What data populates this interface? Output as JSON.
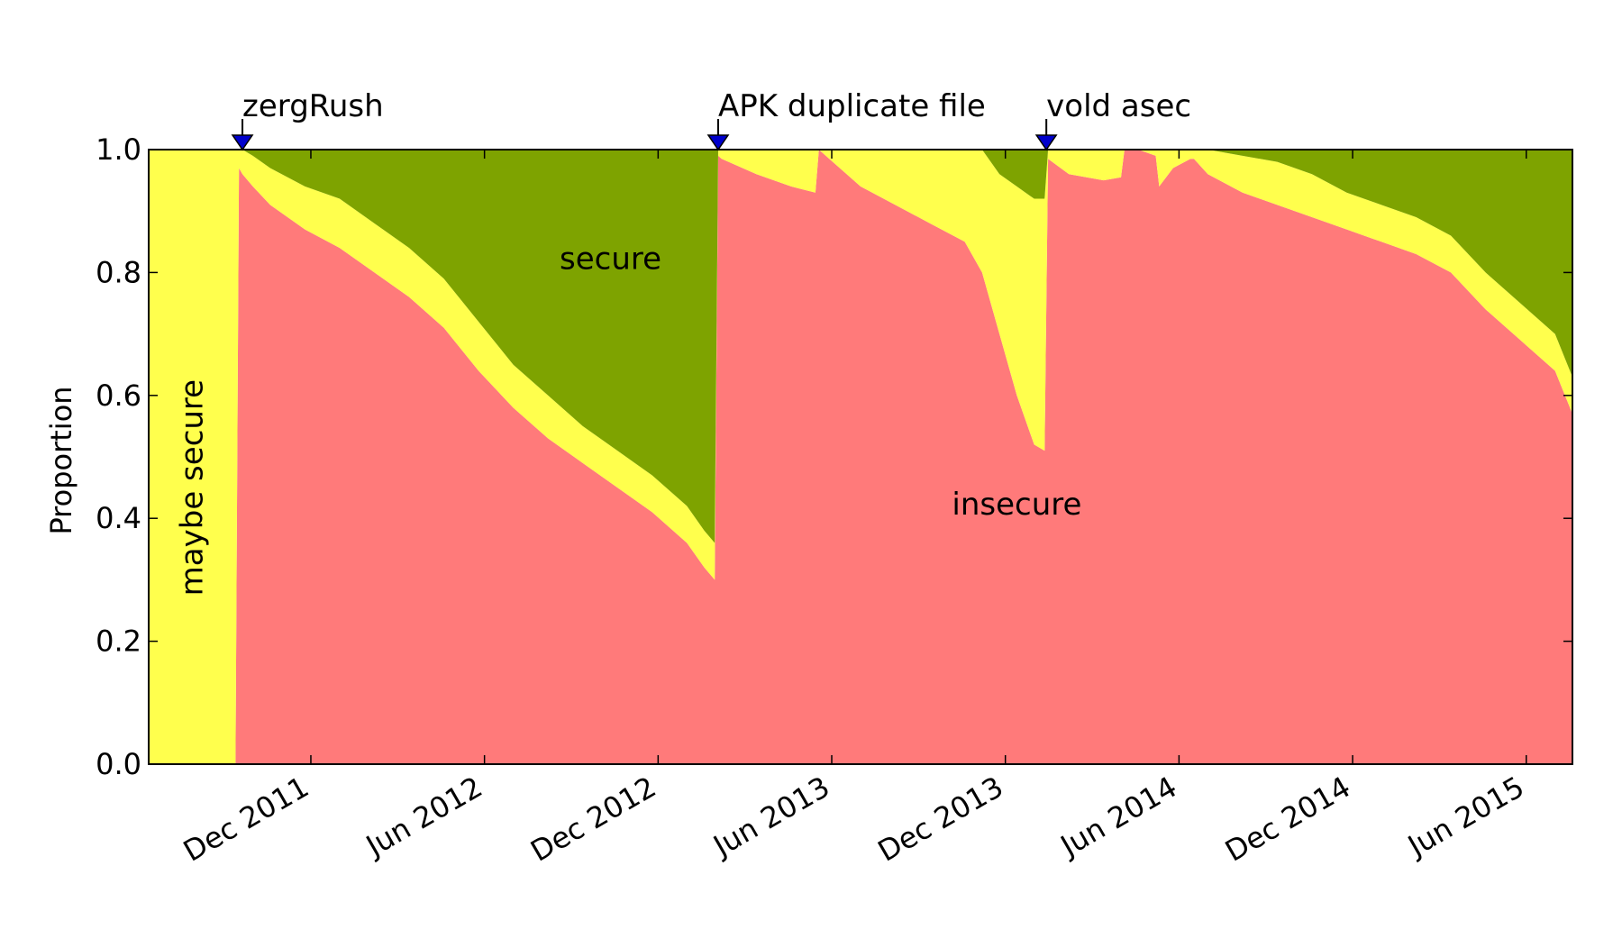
{
  "chart_data": {
    "type": "area",
    "stacking": "stacked-to-one",
    "title": "",
    "xlabel": "",
    "ylabel": "Proportion",
    "xlim": [
      2011.45,
      2015.55
    ],
    "ylim": [
      0.0,
      1.0
    ],
    "grid": false,
    "legend": "none (inline region labels)",
    "y_ticks": [
      {
        "value": 0.0,
        "label": "0.0"
      },
      {
        "value": 0.2,
        "label": "0.2"
      },
      {
        "value": 0.4,
        "label": "0.4"
      },
      {
        "value": 0.6,
        "label": "0.6"
      },
      {
        "value": 0.8,
        "label": "0.8"
      },
      {
        "value": 1.0,
        "label": "1.0"
      }
    ],
    "x_ticks": [
      {
        "value": 2011.917,
        "label": "Dec 2011"
      },
      {
        "value": 2012.417,
        "label": "Jun 2012"
      },
      {
        "value": 2012.917,
        "label": "Dec 2012"
      },
      {
        "value": 2013.417,
        "label": "Jun 2013"
      },
      {
        "value": 2013.917,
        "label": "Dec 2013"
      },
      {
        "value": 2014.417,
        "label": "Jun 2014"
      },
      {
        "value": 2014.917,
        "label": "Dec 2014"
      },
      {
        "value": 2015.417,
        "label": "Jun 2015"
      }
    ],
    "x": [
      2011.45,
      2011.7,
      2011.71,
      2011.72,
      2011.75,
      2011.8,
      2011.9,
      2012.0,
      2012.1,
      2012.2,
      2012.3,
      2012.4,
      2012.5,
      2012.6,
      2012.7,
      2012.8,
      2012.9,
      2013.0,
      2013.05,
      2013.08,
      2013.09,
      2013.1,
      2013.2,
      2013.3,
      2013.37,
      2013.38,
      2013.4,
      2013.5,
      2013.6,
      2013.7,
      2013.8,
      2013.85,
      2013.9,
      2013.95,
      2014.0,
      2014.03,
      2014.04,
      2014.1,
      2014.2,
      2014.25,
      2014.26,
      2014.3,
      2014.35,
      2014.36,
      2014.4,
      2014.45,
      2014.46,
      2014.5,
      2014.6,
      2014.7,
      2014.8,
      2014.9,
      2015.0,
      2015.1,
      2015.2,
      2015.3,
      2015.4,
      2015.5,
      2015.55
    ],
    "series": [
      {
        "name": "insecure",
        "color": "#ff7a7a",
        "values": [
          0,
          0,
          0.97,
          0.96,
          0.94,
          0.91,
          0.87,
          0.84,
          0.8,
          0.76,
          0.71,
          0.64,
          0.58,
          0.53,
          0.49,
          0.45,
          0.41,
          0.36,
          0.32,
          0.3,
          0.99,
          0.985,
          0.96,
          0.94,
          0.93,
          1.0,
          0.99,
          0.94,
          0.91,
          0.88,
          0.85,
          0.8,
          0.7,
          0.6,
          0.52,
          0.51,
          0.985,
          0.96,
          0.95,
          0.955,
          1.0,
          1.0,
          0.99,
          0.94,
          0.97,
          0.985,
          0.985,
          0.96,
          0.93,
          0.91,
          0.89,
          0.87,
          0.85,
          0.83,
          0.8,
          0.74,
          0.69,
          0.64,
          0.57
        ]
      },
      {
        "name": "maybe secure",
        "color": "#ffff4d",
        "values": [
          1.0,
          1.0,
          0.03,
          0.04,
          0.05,
          0.06,
          0.07,
          0.08,
          0.08,
          0.08,
          0.08,
          0.08,
          0.07,
          0.07,
          0.06,
          0.06,
          0.06,
          0.06,
          0.06,
          0.06,
          0.01,
          0.015,
          0.04,
          0.06,
          0.07,
          0,
          0.01,
          0.06,
          0.09,
          0.12,
          0.15,
          0.2,
          0.26,
          0.34,
          0.4,
          0.41,
          0.015,
          0.04,
          0.05,
          0.045,
          0,
          0,
          0.01,
          0.06,
          0.03,
          0.015,
          0.015,
          0.04,
          0.06,
          0.07,
          0.07,
          0.06,
          0.06,
          0.06,
          0.06,
          0.06,
          0.06,
          0.06,
          0.06
        ]
      },
      {
        "name": "secure",
        "color": "#7ea300",
        "values": [
          0,
          0,
          0,
          0,
          0.01,
          0.03,
          0.06,
          0.08,
          0.12,
          0.16,
          0.21,
          0.28,
          0.35,
          0.4,
          0.45,
          0.49,
          0.53,
          0.58,
          0.62,
          0.64,
          0,
          0,
          0,
          0,
          0,
          0,
          0,
          0,
          0,
          0,
          0,
          0,
          0.04,
          0.06,
          0.08,
          0.08,
          0,
          0,
          0,
          0,
          0,
          0,
          0,
          0,
          0,
          0,
          0,
          0,
          0.01,
          0.02,
          0.04,
          0.07,
          0.09,
          0.11,
          0.14,
          0.2,
          0.25,
          0.3,
          0.37
        ]
      }
    ],
    "region_labels": [
      {
        "text": "maybe secure",
        "x": 2011.58,
        "y": 0.45,
        "rotation": -90
      },
      {
        "text": "secure",
        "x": 2012.78,
        "y": 0.82
      },
      {
        "text": "insecure",
        "x": 2013.95,
        "y": 0.42
      }
    ],
    "annotations": [
      {
        "text": "zergRush",
        "x": 2011.72
      },
      {
        "text": "APK duplicate file",
        "x": 2013.09
      },
      {
        "text": "vold asec",
        "x": 2014.035
      }
    ],
    "colors": {
      "insecure": "#ff7a7a",
      "maybe_secure": "#ffff4d",
      "secure": "#7ea300",
      "marker": "#0000cc"
    }
  }
}
